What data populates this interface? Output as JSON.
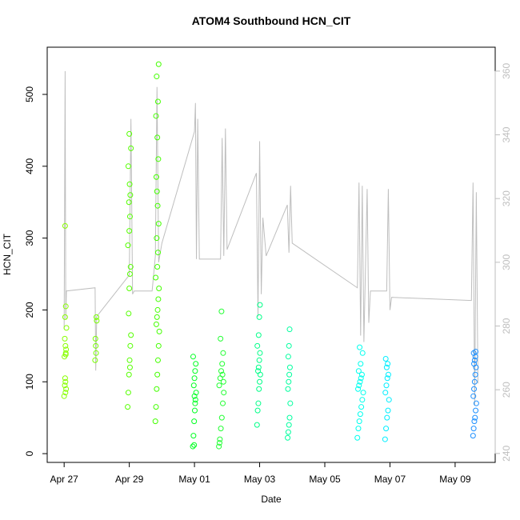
{
  "chart_data": {
    "type": "scatter",
    "title": "ATOM4 Southbound HCN_CIT",
    "x_label": "Date",
    "y_label": "HCN_CIT",
    "xlim": [
      -0.52,
      13.23
    ],
    "xticks": [
      {
        "value": 0,
        "label": "Apr 27"
      },
      {
        "value": 2,
        "label": "Apr 29"
      },
      {
        "value": 4,
        "label": "May 01"
      },
      {
        "value": 6,
        "label": "May 03"
      },
      {
        "value": 8,
        "label": "May 05"
      },
      {
        "value": 10,
        "label": "May 07"
      },
      {
        "value": 12,
        "label": "May 09"
      }
    ],
    "ylim": [
      -12.2,
      565.7
    ],
    "yticks": [
      0,
      100,
      200,
      300,
      400,
      500
    ],
    "y2lim": [
      237.2,
      367.5
    ],
    "y2ticks": [
      240,
      260,
      280,
      300,
      320,
      340,
      360
    ],
    "series": [
      {
        "color": "#88ff00",
        "x": [
          0.0,
          0.02,
          0.03,
          0.05,
          0.06,
          0.04,
          0.01,
          0.03,
          0.05,
          0.07,
          0.02,
          0.04,
          0.06,
          0.03,
          0.05,
          0.04
        ],
        "values": [
          80,
          95,
          105,
          140,
          145,
          150,
          135,
          190,
          205,
          175,
          160,
          85,
          90,
          317,
          138,
          100
        ]
      },
      {
        "color": "#77ff00",
        "x": [
          0.95,
          0.97,
          0.99,
          1.0,
          0.96,
          0.98
        ],
        "values": [
          130,
          150,
          190,
          185,
          160,
          140
        ]
      },
      {
        "color": "#55ff00",
        "x": [
          1.95,
          1.97,
          1.99,
          2.01,
          2.03,
          2.05,
          1.98,
          2.0,
          2.02,
          2.04,
          1.96,
          2.0,
          2.02,
          1.99,
          2.03,
          2.01,
          1.97,
          2.05,
          2.0,
          2.02
        ],
        "values": [
          65,
          85,
          110,
          130,
          150,
          165,
          195,
          230,
          250,
          260,
          290,
          310,
          330,
          350,
          360,
          375,
          400,
          425,
          445,
          120
        ]
      },
      {
        "color": "#44ff00",
        "x": [
          2.8,
          2.82,
          2.84,
          2.86,
          2.88,
          2.9,
          2.92,
          2.83,
          2.85,
          2.87,
          2.89,
          2.91,
          2.81,
          2.86,
          2.88,
          2.84,
          2.9,
          2.87,
          2.85,
          2.83,
          2.89,
          2.86,
          2.82,
          2.88,
          2.84,
          2.9
        ],
        "values": [
          45,
          65,
          90,
          110,
          130,
          150,
          170,
          180,
          190,
          200,
          215,
          230,
          245,
          260,
          280,
          300,
          320,
          345,
          365,
          385,
          410,
          440,
          470,
          490,
          525,
          542
        ]
      },
      {
        "color": "#00ff22",
        "x": [
          3.95,
          3.97,
          3.99,
          4.01,
          4.03,
          4.05,
          3.98,
          4.0,
          4.02,
          4.04,
          3.96,
          4.0,
          4.02,
          3.99
        ],
        "values": [
          10,
          25,
          45,
          60,
          75,
          85,
          95,
          105,
          115,
          125,
          135,
          80,
          70,
          12
        ]
      },
      {
        "color": "#22ff33",
        "x": [
          4.75,
          4.78,
          4.81,
          4.84,
          4.87,
          4.9,
          4.76,
          4.79,
          4.82,
          4.85,
          4.88,
          4.8,
          4.83,
          4.86,
          4.77,
          4.89
        ],
        "values": [
          10,
          20,
          35,
          50,
          70,
          85,
          95,
          105,
          115,
          125,
          140,
          160,
          198,
          110,
          15,
          100
        ]
      },
      {
        "color": "#00ff88",
        "x": [
          5.92,
          5.94,
          5.96,
          5.98,
          6.0,
          6.02,
          5.95,
          5.97,
          5.99,
          6.01,
          5.93,
          5.97,
          5.99,
          6.01
        ],
        "values": [
          40,
          60,
          70,
          90,
          100,
          110,
          115,
          120,
          130,
          140,
          150,
          165,
          190,
          207
        ]
      },
      {
        "color": "#00ff9f",
        "x": [
          6.86,
          6.88,
          6.9,
          6.92,
          6.94,
          6.87,
          6.89,
          6.91,
          6.93,
          6.88,
          6.9,
          6.92
        ],
        "values": [
          22,
          30,
          40,
          50,
          70,
          90,
          100,
          110,
          120,
          135,
          150,
          173
        ]
      },
      {
        "color": "#00ffee",
        "x": [
          9.0,
          9.03,
          9.06,
          9.09,
          9.12,
          9.15,
          9.18,
          9.02,
          9.05,
          9.08,
          9.11,
          9.14,
          9.04,
          9.1,
          9.16,
          9.07
        ],
        "values": [
          22,
          35,
          45,
          55,
          65,
          75,
          85,
          90,
          95,
          100,
          105,
          110,
          115,
          125,
          140,
          148
        ]
      },
      {
        "color": "#00eeff",
        "x": [
          9.85,
          9.88,
          9.91,
          9.94,
          9.97,
          9.86,
          9.89,
          9.92,
          9.95,
          9.9,
          9.93,
          9.87
        ],
        "values": [
          20,
          35,
          50,
          60,
          75,
          85,
          95,
          105,
          110,
          120,
          125,
          132
        ]
      },
      {
        "color": "#1e90ff",
        "x": [
          12.55,
          12.57,
          12.59,
          12.61,
          12.63,
          12.65,
          12.56,
          12.58,
          12.6,
          12.62,
          12.64,
          12.58,
          12.6,
          12.62,
          12.57,
          12.63
        ],
        "values": [
          25,
          35,
          45,
          50,
          60,
          70,
          80,
          90,
          100,
          110,
          120,
          125,
          130,
          135,
          140,
          142
        ]
      }
    ],
    "line": {
      "axis": "y2",
      "color": "#bebebe",
      "x": [
        0.0,
        0.03,
        0.05,
        0.07,
        0.95,
        0.97,
        1.0,
        2.0,
        2.05,
        2.1,
        2.15,
        2.7,
        2.8,
        2.85,
        2.9,
        3.0,
        4.0,
        4.03,
        4.06,
        4.1,
        4.15,
        4.8,
        4.85,
        4.9,
        4.95,
        5.0,
        5.9,
        5.95,
        6.0,
        6.05,
        6.1,
        6.2,
        6.85,
        6.9,
        6.95,
        7.0,
        9.0,
        9.05,
        9.1,
        9.15,
        9.2,
        9.3,
        9.35,
        9.4,
        9.9,
        9.95,
        10.0,
        10.05,
        12.5,
        12.55,
        12.6,
        12.65,
        12.7
      ],
      "values": [
        279,
        360,
        282,
        291,
        292,
        266,
        283,
        296,
        345,
        290,
        291,
        291,
        302,
        355,
        300,
        306,
        341,
        350,
        301,
        345,
        301,
        301,
        339,
        302,
        342,
        304,
        328,
        283,
        338,
        290,
        314,
        302,
        318,
        303,
        324,
        306,
        292,
        325,
        277,
        324,
        275,
        323,
        281,
        291,
        291,
        323,
        285,
        289,
        288,
        325,
        255,
        322,
        262
      ]
    }
  }
}
